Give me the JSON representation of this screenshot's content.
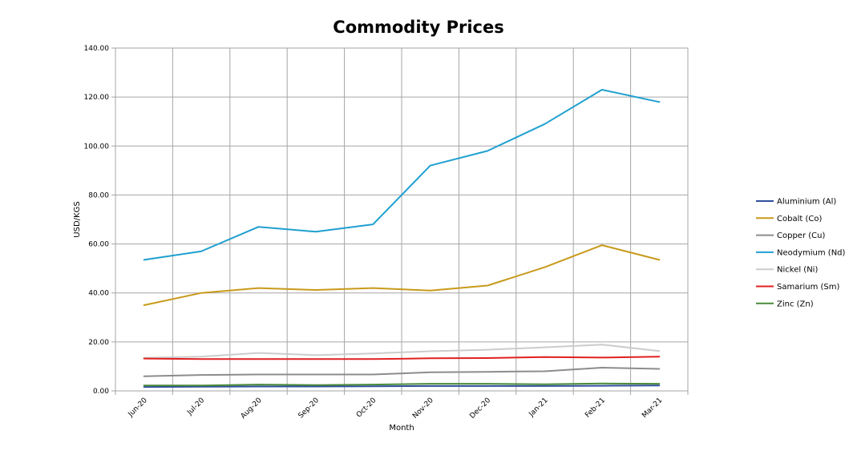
{
  "chart_data": {
    "type": "line",
    "title": "Commodity Prices",
    "xlabel": "Month",
    "ylabel": "USD/KGS",
    "ylim": [
      0,
      140
    ],
    "yticks": [
      "0.00",
      "20.00",
      "40.00",
      "60.00",
      "80.00",
      "100.00",
      "120.00",
      "140.00"
    ],
    "categories": [
      "Jun-20",
      "Jul-20",
      "Aug-20",
      "Sep-20",
      "Oct-20",
      "Nov-20",
      "Dec-20",
      "Jan-21",
      "Feb-21",
      "Mar-21"
    ],
    "grid": true,
    "legend_position": "right",
    "series": [
      {
        "name": "Aluminium (Al)",
        "color": "#2f4f9e",
        "values": [
          1.6,
          1.7,
          1.8,
          1.8,
          1.9,
          2.0,
          2.0,
          2.0,
          2.1,
          2.2
        ]
      },
      {
        "name": "Cobalt (Co)",
        "color": "#c89a1a",
        "values": [
          35,
          40,
          42,
          41.2,
          42,
          41,
          43,
          50.5,
          59.5,
          53.5
        ]
      },
      {
        "name": "Copper (Cu)",
        "color": "#8c8c8c",
        "values": [
          6,
          6.5,
          6.7,
          6.7,
          6.7,
          7.6,
          7.8,
          8.0,
          9.5,
          9.0
        ]
      },
      {
        "name": "Neodymium (Nd)",
        "color": "#1fa0d0",
        "values": [
          53.5,
          57,
          67,
          65,
          68,
          92,
          98,
          109,
          123,
          118
        ]
      },
      {
        "name": "Nickel (Ni)",
        "color": "#cccccc",
        "values": [
          13.5,
          14,
          15.5,
          14.6,
          15.3,
          16.2,
          16.8,
          17.8,
          18.9,
          16.3
        ]
      },
      {
        "name": "Samarium (Sm)",
        "color": "#e02020",
        "values": [
          13.2,
          13,
          13,
          13,
          13,
          13.3,
          13.4,
          13.8,
          13.6,
          14
        ]
      },
      {
        "name": "Zinc (Zn)",
        "color": "#4a8a3a",
        "values": [
          2.2,
          2.2,
          2.6,
          2.4,
          2.6,
          2.9,
          2.9,
          2.7,
          3.0,
          2.9
        ]
      }
    ]
  }
}
